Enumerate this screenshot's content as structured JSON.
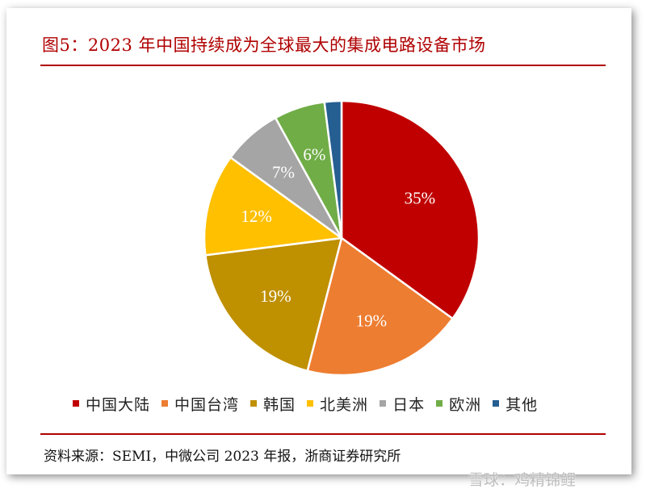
{
  "title": "图5：2023 年中国持续成为全球最大的集成电路设备市场",
  "source": "资料来源：SEMI，中微公司 2023 年报，浙商证券研究所",
  "watermark": "雪球：鸡精锦鲤",
  "chart_data": {
    "type": "pie",
    "title": "",
    "slices": [
      {
        "name": "中国大陆",
        "value": 35,
        "label": "35%",
        "color": "#c00000"
      },
      {
        "name": "中国台湾",
        "value": 19,
        "label": "19%",
        "color": "#ed7d31"
      },
      {
        "name": "韩国",
        "value": 19,
        "label": "19%",
        "color": "#bf9000"
      },
      {
        "name": "北美洲",
        "value": 12,
        "label": "12%",
        "color": "#ffc000"
      },
      {
        "name": "日本",
        "value": 7,
        "label": "7%",
        "color": "#a5a5a5"
      },
      {
        "name": "欧洲",
        "value": 6,
        "label": "6%",
        "color": "#70ad47"
      },
      {
        "name": "其他",
        "value": 2,
        "label": "",
        "color": "#255e91"
      }
    ],
    "legend_position": "bottom",
    "start_angle": "12 o'clock, clockwise"
  }
}
